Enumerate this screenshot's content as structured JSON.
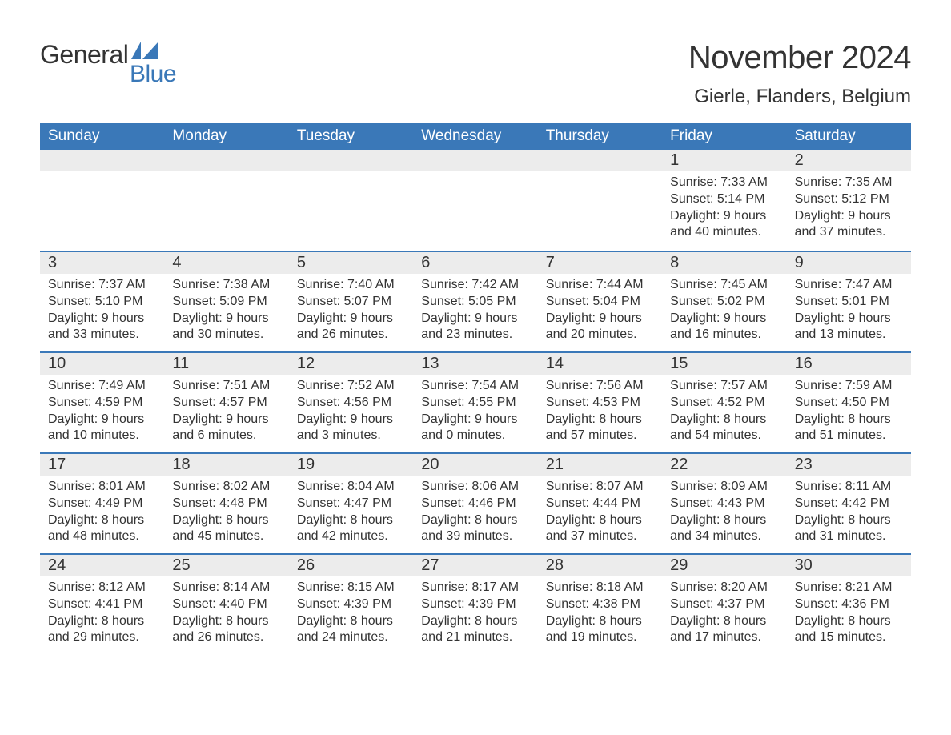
{
  "logo": {
    "main": "General",
    "sub": "Blue",
    "icon_color": "#3a78b8"
  },
  "title": "November 2024",
  "subtitle": "Gierle, Flanders, Belgium",
  "colors": {
    "header_bg": "#3a78b8",
    "header_text": "#ffffff",
    "row_border": "#3a78b8",
    "daynum_bg": "#ececec",
    "body_text": "#333333",
    "page_bg": "#ffffff"
  },
  "calendar": {
    "weekdays": [
      "Sunday",
      "Monday",
      "Tuesday",
      "Wednesday",
      "Thursday",
      "Friday",
      "Saturday"
    ],
    "weeks": [
      [
        null,
        null,
        null,
        null,
        null,
        {
          "n": 1,
          "sunrise": "7:33 AM",
          "sunset": "5:14 PM",
          "dl_h": 9,
          "dl_m": 40
        },
        {
          "n": 2,
          "sunrise": "7:35 AM",
          "sunset": "5:12 PM",
          "dl_h": 9,
          "dl_m": 37
        }
      ],
      [
        {
          "n": 3,
          "sunrise": "7:37 AM",
          "sunset": "5:10 PM",
          "dl_h": 9,
          "dl_m": 33
        },
        {
          "n": 4,
          "sunrise": "7:38 AM",
          "sunset": "5:09 PM",
          "dl_h": 9,
          "dl_m": 30
        },
        {
          "n": 5,
          "sunrise": "7:40 AM",
          "sunset": "5:07 PM",
          "dl_h": 9,
          "dl_m": 26
        },
        {
          "n": 6,
          "sunrise": "7:42 AM",
          "sunset": "5:05 PM",
          "dl_h": 9,
          "dl_m": 23
        },
        {
          "n": 7,
          "sunrise": "7:44 AM",
          "sunset": "5:04 PM",
          "dl_h": 9,
          "dl_m": 20
        },
        {
          "n": 8,
          "sunrise": "7:45 AM",
          "sunset": "5:02 PM",
          "dl_h": 9,
          "dl_m": 16
        },
        {
          "n": 9,
          "sunrise": "7:47 AM",
          "sunset": "5:01 PM",
          "dl_h": 9,
          "dl_m": 13
        }
      ],
      [
        {
          "n": 10,
          "sunrise": "7:49 AM",
          "sunset": "4:59 PM",
          "dl_h": 9,
          "dl_m": 10
        },
        {
          "n": 11,
          "sunrise": "7:51 AM",
          "sunset": "4:57 PM",
          "dl_h": 9,
          "dl_m": 6
        },
        {
          "n": 12,
          "sunrise": "7:52 AM",
          "sunset": "4:56 PM",
          "dl_h": 9,
          "dl_m": 3
        },
        {
          "n": 13,
          "sunrise": "7:54 AM",
          "sunset": "4:55 PM",
          "dl_h": 9,
          "dl_m": 0
        },
        {
          "n": 14,
          "sunrise": "7:56 AM",
          "sunset": "4:53 PM",
          "dl_h": 8,
          "dl_m": 57
        },
        {
          "n": 15,
          "sunrise": "7:57 AM",
          "sunset": "4:52 PM",
          "dl_h": 8,
          "dl_m": 54
        },
        {
          "n": 16,
          "sunrise": "7:59 AM",
          "sunset": "4:50 PM",
          "dl_h": 8,
          "dl_m": 51
        }
      ],
      [
        {
          "n": 17,
          "sunrise": "8:01 AM",
          "sunset": "4:49 PM",
          "dl_h": 8,
          "dl_m": 48
        },
        {
          "n": 18,
          "sunrise": "8:02 AM",
          "sunset": "4:48 PM",
          "dl_h": 8,
          "dl_m": 45
        },
        {
          "n": 19,
          "sunrise": "8:04 AM",
          "sunset": "4:47 PM",
          "dl_h": 8,
          "dl_m": 42
        },
        {
          "n": 20,
          "sunrise": "8:06 AM",
          "sunset": "4:46 PM",
          "dl_h": 8,
          "dl_m": 39
        },
        {
          "n": 21,
          "sunrise": "8:07 AM",
          "sunset": "4:44 PM",
          "dl_h": 8,
          "dl_m": 37
        },
        {
          "n": 22,
          "sunrise": "8:09 AM",
          "sunset": "4:43 PM",
          "dl_h": 8,
          "dl_m": 34
        },
        {
          "n": 23,
          "sunrise": "8:11 AM",
          "sunset": "4:42 PM",
          "dl_h": 8,
          "dl_m": 31
        }
      ],
      [
        {
          "n": 24,
          "sunrise": "8:12 AM",
          "sunset": "4:41 PM",
          "dl_h": 8,
          "dl_m": 29
        },
        {
          "n": 25,
          "sunrise": "8:14 AM",
          "sunset": "4:40 PM",
          "dl_h": 8,
          "dl_m": 26
        },
        {
          "n": 26,
          "sunrise": "8:15 AM",
          "sunset": "4:39 PM",
          "dl_h": 8,
          "dl_m": 24
        },
        {
          "n": 27,
          "sunrise": "8:17 AM",
          "sunset": "4:39 PM",
          "dl_h": 8,
          "dl_m": 21
        },
        {
          "n": 28,
          "sunrise": "8:18 AM",
          "sunset": "4:38 PM",
          "dl_h": 8,
          "dl_m": 19
        },
        {
          "n": 29,
          "sunrise": "8:20 AM",
          "sunset": "4:37 PM",
          "dl_h": 8,
          "dl_m": 17
        },
        {
          "n": 30,
          "sunrise": "8:21 AM",
          "sunset": "4:36 PM",
          "dl_h": 8,
          "dl_m": 15
        }
      ]
    ],
    "labels": {
      "sunrise": "Sunrise:",
      "sunset": "Sunset:",
      "daylight": "Daylight:",
      "hours": "hours",
      "and": "and",
      "minutes": "minutes."
    }
  }
}
